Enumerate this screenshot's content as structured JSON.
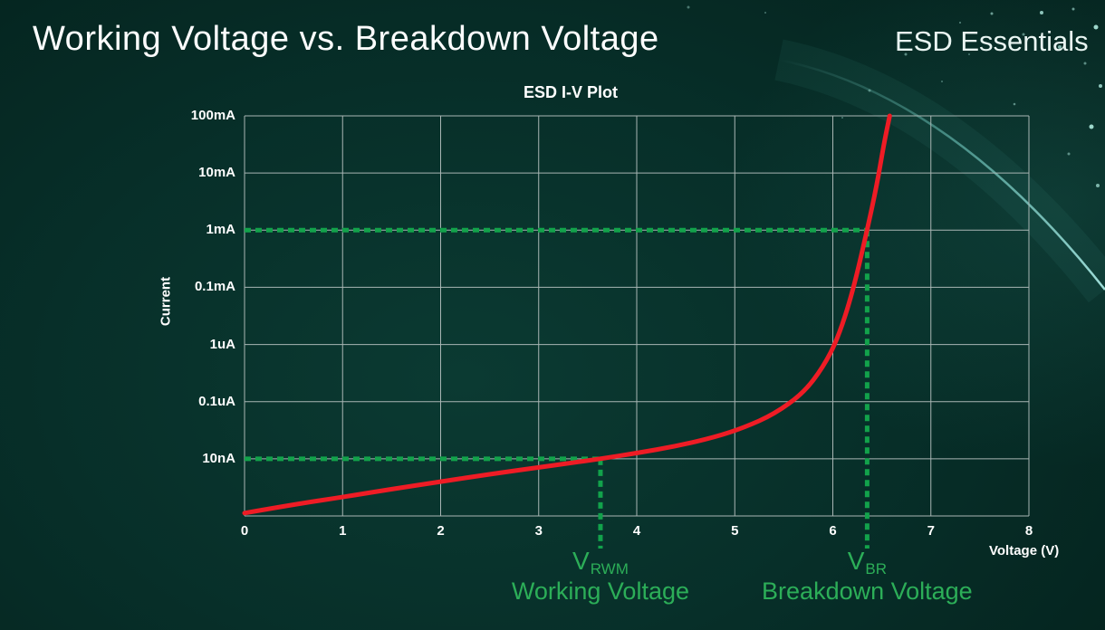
{
  "page": {
    "title": "Working Voltage vs. Breakdown Voltage",
    "brand": "ESD Essentials"
  },
  "chart_data": {
    "type": "line",
    "title": "ESD I-V Plot",
    "xlabel": "Voltage (V)",
    "ylabel": "Current",
    "xlim": [
      0,
      8
    ],
    "x_ticks": [
      0,
      1,
      2,
      3,
      4,
      5,
      6,
      7,
      8
    ],
    "y_tick_labels": [
      "100mA",
      "10mA",
      "1mA",
      "0.1mA",
      "1uA",
      "0.1uA",
      "10nA"
    ],
    "y_axis_note": "y values of points are grid rows: 0 = bottom axis line, 7 = top gridline (100mA), one unit per horizontal gridline",
    "grid": true,
    "colors": {
      "curve": "#ee1c25",
      "annotation": "#12a24b",
      "annotation_text": "#2cae58",
      "grid": "#a9b6b4",
      "text": "#ffffff"
    },
    "series": [
      {
        "name": "ESD I-V curve",
        "color": "#ee1c25",
        "points": [
          [
            0,
            0.05
          ],
          [
            0.5,
            0.2
          ],
          [
            1,
            0.33
          ],
          [
            1.5,
            0.47
          ],
          [
            2,
            0.6
          ],
          [
            2.5,
            0.73
          ],
          [
            3,
            0.85
          ],
          [
            3.3,
            0.92
          ],
          [
            3.63,
            1.0
          ],
          [
            4,
            1.1
          ],
          [
            4.4,
            1.22
          ],
          [
            4.8,
            1.38
          ],
          [
            5.1,
            1.55
          ],
          [
            5.4,
            1.78
          ],
          [
            5.7,
            2.15
          ],
          [
            5.9,
            2.6
          ],
          [
            6.05,
            3.1
          ],
          [
            6.2,
            3.9
          ],
          [
            6.35,
            5.0
          ],
          [
            6.45,
            5.8
          ],
          [
            6.52,
            6.5
          ],
          [
            6.58,
            7.0
          ]
        ]
      }
    ],
    "annotations": [
      {
        "symbol": "V",
        "subscript": "RWM",
        "caption": "Working Voltage",
        "x": 3.63,
        "level": "10nA"
      },
      {
        "symbol": "V",
        "subscript": "BR",
        "caption": "Breakdown Voltage",
        "x": 6.35,
        "level": "1mA"
      }
    ]
  }
}
